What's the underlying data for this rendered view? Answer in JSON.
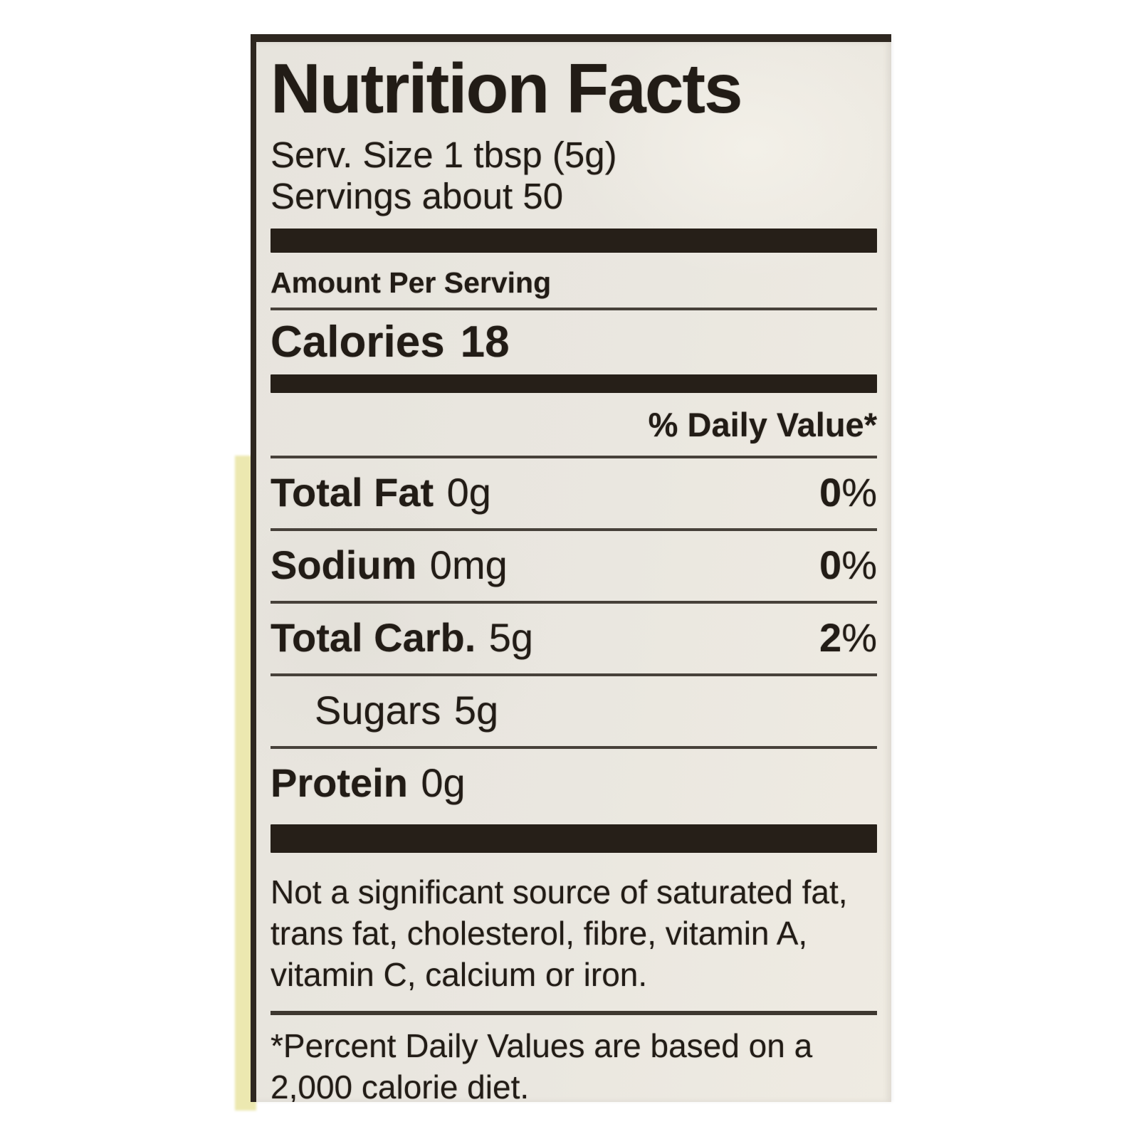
{
  "colors": {
    "page_background": "#ffffff",
    "label_background": "#e9e6e0",
    "ink": "#221c16",
    "divider_bar": "#261f18",
    "thin_rule": "#47413a",
    "left_side_strip": "#ece8b0",
    "border": "#2e2720"
  },
  "label": {
    "title": "Nutrition Facts",
    "serving_size_line": "Serv. Size 1 tbsp (5g)",
    "servings_line": "Servings about 50",
    "amount_per_serving": "Amount Per Serving",
    "calories": {
      "name": "Calories",
      "value": "18"
    },
    "daily_value_header": "% Daily Value*",
    "nutrients": [
      {
        "name": "Total Fat",
        "amount": "0g",
        "dv_value": "0",
        "dv_unit": "%"
      },
      {
        "name": "Sodium",
        "amount": "0mg",
        "dv_value": "0",
        "dv_unit": "%"
      },
      {
        "name": "Total Carb.",
        "amount": "5g",
        "dv_value": "2",
        "dv_unit": "%"
      },
      {
        "name": "Sugars",
        "amount": "5g"
      },
      {
        "name": "Protein",
        "amount": "0g"
      }
    ],
    "footnote_significant_source": "Not a significant source of saturated fat, trans fat, cholesterol, fibre, vitamin A, vitamin C, calcium or iron.",
    "footnote_daily_values": "*Percent Daily Values are based on a 2,000 calorie diet."
  }
}
